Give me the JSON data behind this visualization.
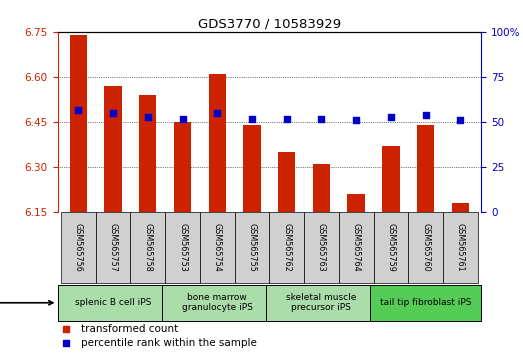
{
  "title": "GDS3770 / 10583929",
  "samples": [
    "GSM565756",
    "GSM565757",
    "GSM565758",
    "GSM565753",
    "GSM565754",
    "GSM565755",
    "GSM565762",
    "GSM565763",
    "GSM565764",
    "GSM565759",
    "GSM565760",
    "GSM565761"
  ],
  "transformed_count": [
    6.74,
    6.57,
    6.54,
    6.45,
    6.61,
    6.44,
    6.35,
    6.31,
    6.21,
    6.37,
    6.44,
    6.18
  ],
  "percentile_rank": [
    57,
    55,
    53,
    52,
    55,
    52,
    52,
    52,
    51,
    53,
    54,
    51
  ],
  "ylim_left": [
    6.15,
    6.75
  ],
  "ylim_right": [
    0,
    100
  ],
  "yticks_left": [
    6.15,
    6.3,
    6.45,
    6.6,
    6.75
  ],
  "yticks_right": [
    0,
    25,
    50,
    75,
    100
  ],
  "bar_color": "#cc2200",
  "dot_color": "#0000cc",
  "base_value": 6.15,
  "cell_type_groups": [
    {
      "label": "splenic B cell iPS",
      "start": 0,
      "end": 3,
      "color": "#aaddaa"
    },
    {
      "label": "bone marrow\ngranulocyte iPS",
      "start": 3,
      "end": 6,
      "color": "#aaddaa"
    },
    {
      "label": "skeletal muscle\nprecursor iPS",
      "start": 6,
      "end": 9,
      "color": "#aaddaa"
    },
    {
      "label": "tail tip fibroblast iPS",
      "start": 9,
      "end": 12,
      "color": "#55cc55"
    }
  ],
  "legend_items": [
    {
      "label": "transformed count",
      "color": "#cc2200",
      "marker": "s"
    },
    {
      "label": "percentile rank within the sample",
      "color": "#0000cc",
      "marker": "s"
    }
  ],
  "grid_color": "#000000",
  "tick_color_left": "#cc2200",
  "tick_color_right": "#0000cc",
  "background_color": "#ffffff"
}
